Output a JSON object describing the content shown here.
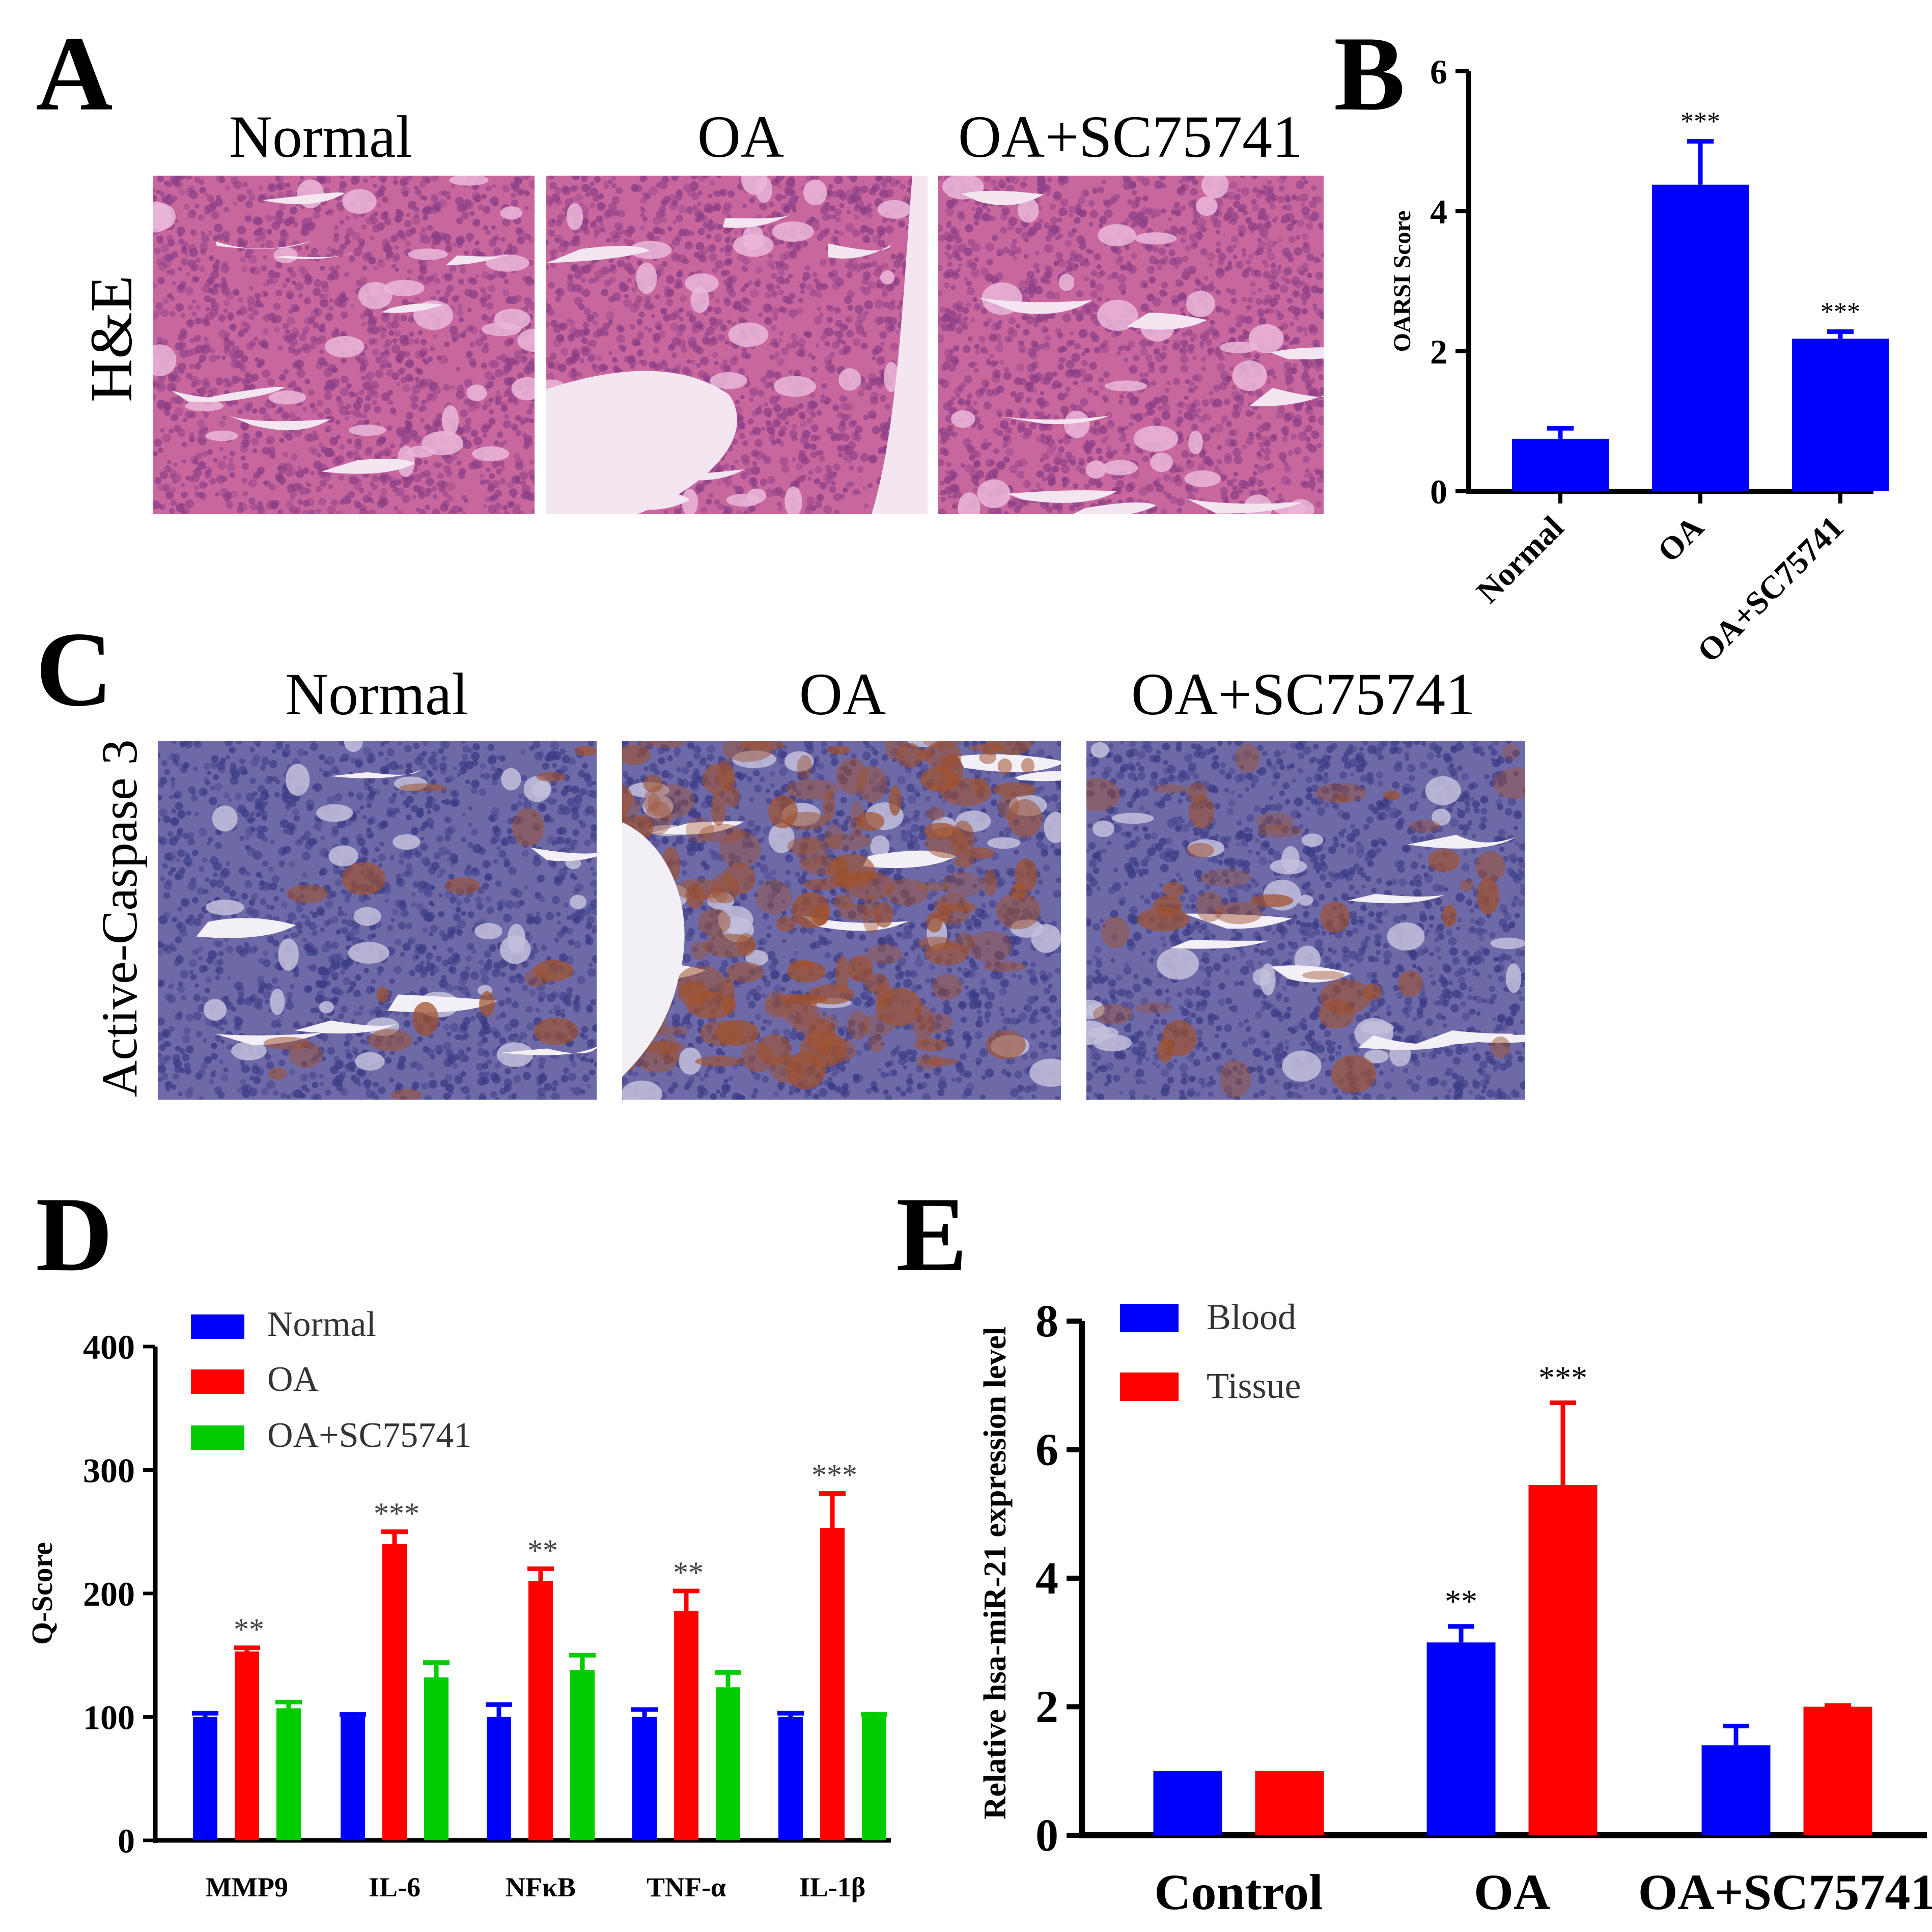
{
  "panels": {
    "A": {
      "letter": "A",
      "titles": [
        "Normal",
        "OA",
        "OA+SC75741"
      ],
      "row_label": "H&E",
      "colors": {
        "stain": "#c8679e",
        "stain_light": "#eab7d8",
        "cells": "#8c3f86",
        "clear": "#f4e6f1"
      }
    },
    "C": {
      "letter": "C",
      "titles": [
        "Normal",
        "OA",
        "OA+SC75741"
      ],
      "row_label": "Active-Caspase 3",
      "colors": {
        "stain": "#6e6aa8",
        "stain_light": "#c3bfdc",
        "cells": "#3c3c86",
        "brown": "#a0522d",
        "clear": "#f3eff6"
      }
    },
    "B": {
      "letter": "B"
    },
    "D": {
      "letter": "D"
    },
    "E": {
      "letter": "E"
    }
  },
  "chart_data": [
    {
      "panel": "B",
      "type": "bar",
      "categories": [
        "Normal",
        "OA",
        "OA+SC75741"
      ],
      "values": [
        0.75,
        4.38,
        2.18
      ],
      "errors": [
        0.15,
        0.62,
        0.1
      ],
      "significance": [
        "",
        "***",
        "***"
      ],
      "title": "",
      "xlabel": "",
      "ylabel": "OARSI Score",
      "ylim": [
        0,
        6
      ],
      "yticks": [
        0,
        2,
        4,
        6
      ],
      "color": "#0000ff"
    },
    {
      "panel": "D",
      "type": "bar",
      "categories": [
        "MMP9",
        "IL-6",
        "NFκB",
        "TNF-α",
        "IL-1β"
      ],
      "series": [
        {
          "name": "Normal",
          "color": "#0000ff",
          "values": [
            100,
            100,
            100,
            100,
            100
          ],
          "errors": [
            3,
            2,
            10,
            6,
            3
          ]
        },
        {
          "name": "OA",
          "color": "#ff0000",
          "values": [
            153,
            240,
            210,
            186,
            253
          ],
          "errors": [
            3,
            10,
            10,
            16,
            28
          ]
        },
        {
          "name": "OA+SC75741",
          "color": "#00cc00",
          "values": [
            107,
            132,
            138,
            124,
            100
          ],
          "errors": [
            5,
            12,
            12,
            12,
            2
          ]
        }
      ],
      "significance": [
        "**",
        "***",
        "**",
        "**",
        "***"
      ],
      "title": "",
      "xlabel": "",
      "ylabel": "Q-Score",
      "ylim": [
        0,
        400
      ],
      "yticks": [
        0,
        100,
        200,
        300,
        400
      ],
      "legend": "top-left"
    },
    {
      "panel": "E",
      "type": "bar",
      "categories": [
        "Control",
        "OA",
        "OA+SC75741"
      ],
      "series": [
        {
          "name": "Blood",
          "color": "#0000ff",
          "values": [
            1.0,
            3.0,
            1.4
          ],
          "errors": [
            0,
            0.25,
            0.3
          ]
        },
        {
          "name": "Tissue",
          "color": "#ff0000",
          "values": [
            1.0,
            5.45,
            2.0
          ],
          "errors": [
            0,
            1.28,
            0.02
          ]
        }
      ],
      "significance": {
        "Blood": [
          "",
          "**",
          ""
        ],
        "Tissue": [
          "",
          "***",
          ""
        ]
      },
      "title": "",
      "xlabel": "",
      "ylabel": "Relative hsa-miR-21 expression level",
      "ylim": [
        0,
        8
      ],
      "yticks": [
        0,
        2,
        4,
        6,
        8
      ],
      "legend": "top-left"
    }
  ]
}
